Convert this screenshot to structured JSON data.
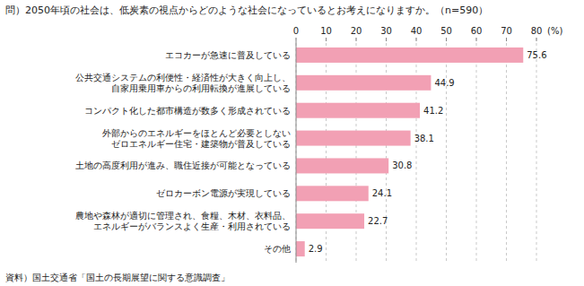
{
  "chart_data": {
    "type": "bar",
    "orientation": "horizontal",
    "title": "問）2050年頃の社会は、低炭素の視点からどのような社会になっているとお考えになりますか。（n=590）",
    "source": "資料）国土交通省「国土の長期展望に関する意識調査」",
    "xlabel": "(%)",
    "categories": [
      "エコカーが急速に普及している",
      "公共交通システムの利便性・経済性が大きく向上し、\n自家用乗用車からの利用転換が進展している",
      "コンパクト化した都市構造が数多く形成されている",
      "外部からのエネルギーをほとんど必要としない\nゼロエネルギー住宅・建築物が普及している",
      "土地の高度利用が進み、職住近接が可能となっている",
      "ゼロカーボン電源が実現している",
      "農地や森林が適切に管理され、食糧、木材、衣料品、\nエネルギーがバランスよく生産・利用されている",
      "その他"
    ],
    "values": [
      75.6,
      44.9,
      41.2,
      38.1,
      30.8,
      24.1,
      22.7,
      2.9
    ],
    "color": "#f2a0b4",
    "xlim": [
      0,
      80
    ],
    "xticks": [
      0,
      10,
      20,
      30,
      40,
      50,
      60,
      70,
      80
    ],
    "grid": true,
    "data_labels": true
  }
}
